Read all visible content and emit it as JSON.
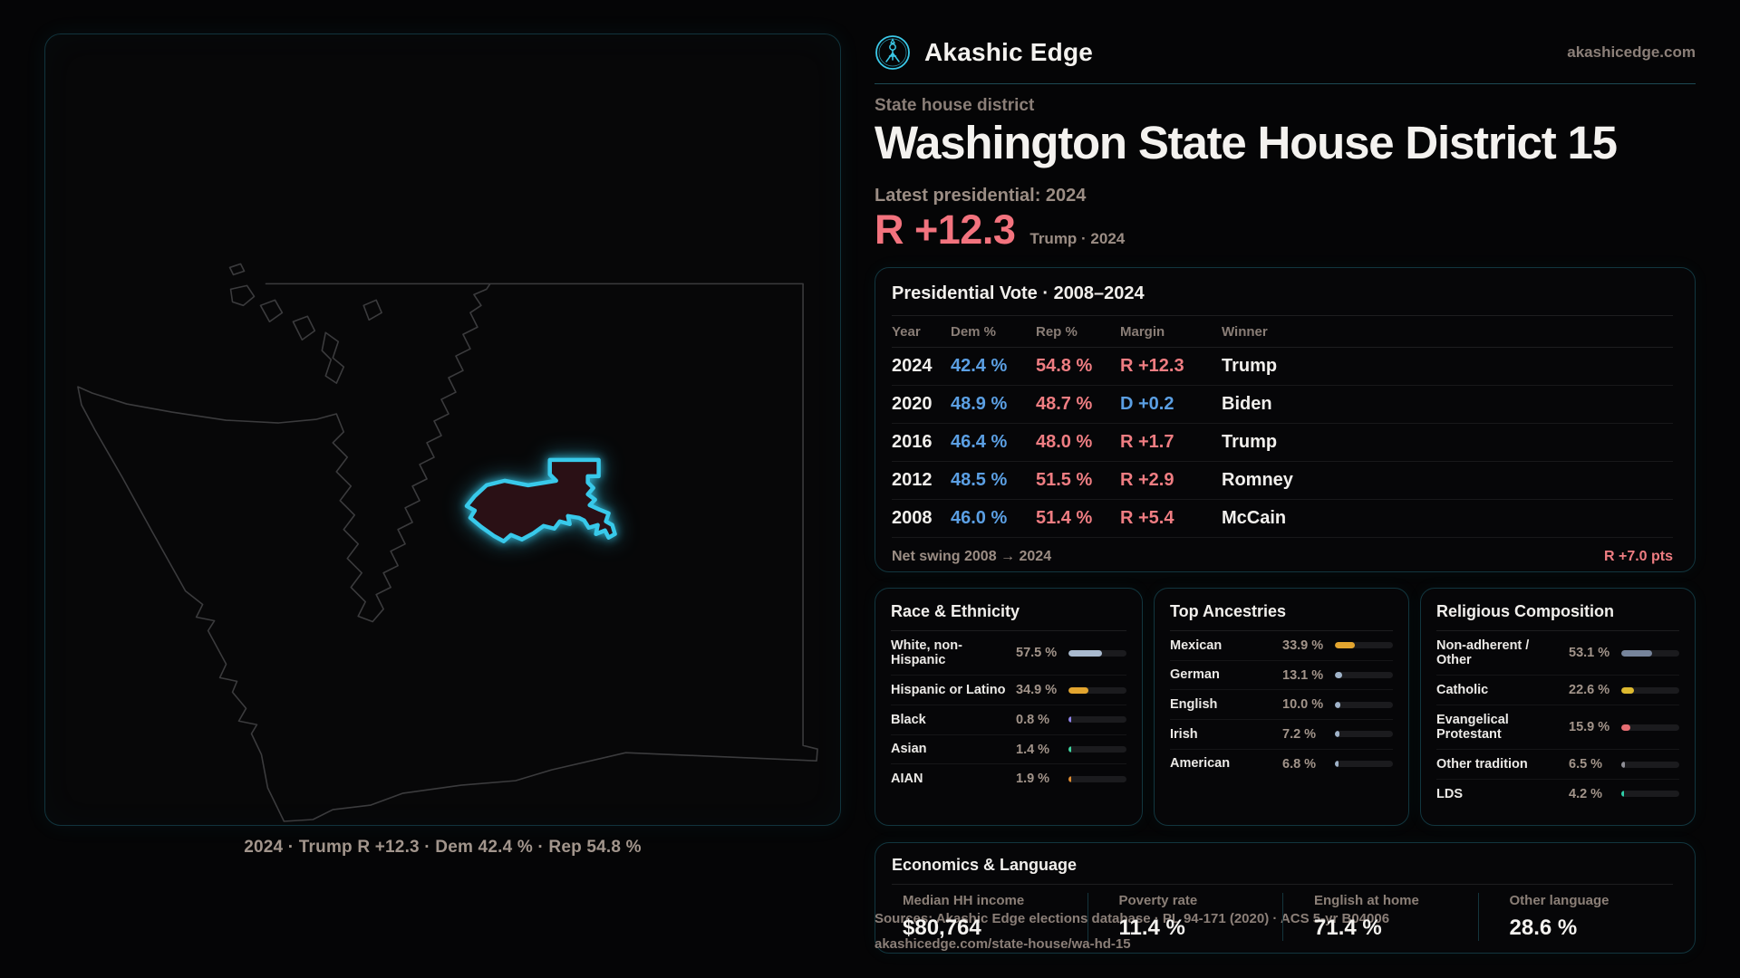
{
  "brand": {
    "name": "Akashic Edge",
    "domain": "akashicedge.com"
  },
  "header": {
    "kicker": "State house district",
    "title": "Washington State House District 15",
    "latest_label": "Latest presidential: 2024",
    "margin_value": "R +12.3",
    "margin_note": "Trump · 2024"
  },
  "map": {
    "caption": "2024 · Trump R +12.3 · Dem 42.4 % · Rep 54.8 %"
  },
  "pres_table": {
    "title": "Presidential Vote · 2008–2024",
    "columns": {
      "year": "Year",
      "dem": "Dem %",
      "rep": "Rep %",
      "margin": "Margin",
      "winner": "Winner"
    },
    "rows": [
      {
        "year": "2024",
        "dem": "42.4 %",
        "rep": "54.8 %",
        "margin": "R +12.3",
        "margin_party": "R",
        "winner": "Trump"
      },
      {
        "year": "2020",
        "dem": "48.9 %",
        "rep": "48.7 %",
        "margin": "D +0.2",
        "margin_party": "D",
        "winner": "Biden"
      },
      {
        "year": "2016",
        "dem": "46.4 %",
        "rep": "48.0 %",
        "margin": "R +1.7",
        "margin_party": "R",
        "winner": "Trump"
      },
      {
        "year": "2012",
        "dem": "48.5 %",
        "rep": "51.5 %",
        "margin": "R +2.9",
        "margin_party": "R",
        "winner": "Romney"
      },
      {
        "year": "2008",
        "dem": "46.0 %",
        "rep": "51.4 %",
        "margin": "R +5.4",
        "margin_party": "R",
        "winner": "McCain"
      }
    ],
    "net_swing_label": "Net swing 2008 → 2024",
    "net_swing_value": "R +7.0 pts"
  },
  "demo_panels": [
    {
      "title": "Race & Ethnicity",
      "rows": [
        {
          "label": "White, non-Hispanic",
          "value": "57.5 %",
          "pct": 57.5,
          "color": "#a9bacf"
        },
        {
          "label": "Hispanic or Latino",
          "value": "34.9 %",
          "pct": 34.9,
          "color": "#e3a52f"
        },
        {
          "label": "Black",
          "value": "0.8 %",
          "pct": 0.8,
          "color": "#8f83ea"
        },
        {
          "label": "Asian",
          "value": "1.4 %",
          "pct": 1.4,
          "color": "#3fd6a0"
        },
        {
          "label": "AIAN",
          "value": "1.9 %",
          "pct": 1.9,
          "color": "#de8b2f"
        }
      ]
    },
    {
      "title": "Top Ancestries",
      "rows": [
        {
          "label": "Mexican",
          "value": "33.9 %",
          "pct": 33.9,
          "color": "#e3a52f"
        },
        {
          "label": "German",
          "value": "13.1 %",
          "pct": 13.1,
          "color": "#9fb2c8"
        },
        {
          "label": "English",
          "value": "10.0 %",
          "pct": 10.0,
          "color": "#9fb2c8"
        },
        {
          "label": "Irish",
          "value": "7.2 %",
          "pct": 7.2,
          "color": "#9fb2c8"
        },
        {
          "label": "American",
          "value": "6.8 %",
          "pct": 6.8,
          "color": "#9fb2c8"
        }
      ]
    },
    {
      "title": "Religious Composition",
      "rows": [
        {
          "label": "Non-adherent / Other",
          "value": "53.1 %",
          "pct": 53.1,
          "color": "#76849b"
        },
        {
          "label": "Catholic",
          "value": "22.6 %",
          "pct": 22.6,
          "color": "#ddb92f"
        },
        {
          "label": "Evangelical Protestant",
          "value": "15.9 %",
          "pct": 15.9,
          "color": "#e66d72"
        },
        {
          "label": "Other tradition",
          "value": "6.5 %",
          "pct": 6.5,
          "color": "#8e8e96"
        },
        {
          "label": "LDS",
          "value": "4.2 %",
          "pct": 4.2,
          "color": "#2fd0a9"
        }
      ]
    }
  ],
  "economics": {
    "title": "Economics & Language",
    "stats": [
      {
        "label": "Median HH income",
        "value": "$80,764"
      },
      {
        "label": "Poverty rate",
        "value": "11.4 %"
      },
      {
        "label": "English at home",
        "value": "71.4 %"
      },
      {
        "label": "Other language",
        "value": "28.6 %"
      }
    ]
  },
  "footer": {
    "line1": "Sources: Akashic Edge elections database · PL 94-171 (2020) · ACS 5-yr B04006",
    "line2": "akashicedge.com/state-house/wa-hd-15"
  },
  "colors": {
    "accent": "#38c9ea",
    "dem": "#5b9fe3",
    "rep": "#ef7d82",
    "text": "#f2efec",
    "muted": "#8b7f78"
  }
}
